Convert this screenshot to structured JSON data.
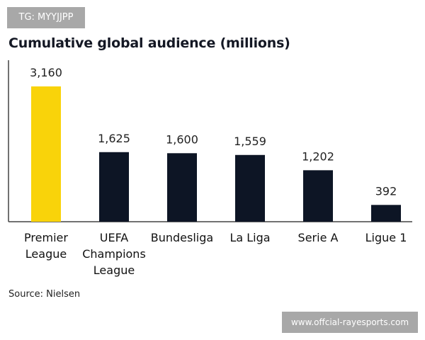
{
  "watermark_top": "TG: MYYJJPP",
  "watermark_bottom": "www.offcial-rayesports.com",
  "source": "Source: Nielsen",
  "chart_data": {
    "type": "bar",
    "title": "Cumulative global audience (millions)",
    "categories": [
      [
        "Premier",
        "League"
      ],
      [
        "UEFA",
        "Champions",
        "League"
      ],
      [
        "Bundesliga"
      ],
      [
        "La Liga"
      ],
      [
        "Serie A"
      ],
      [
        "Ligue 1"
      ]
    ],
    "values": [
      3160,
      1625,
      1600,
      1559,
      1202,
      392
    ],
    "value_labels": [
      "3,160",
      "1,625",
      "1,600",
      "1,559",
      "1,202",
      "392"
    ],
    "colors": [
      "#f9d30a",
      "#0d1525",
      "#0d1525",
      "#0d1525",
      "#0d1525",
      "#0d1525"
    ],
    "xlabel": "",
    "ylabel": "",
    "ylim": [
      0,
      3160
    ],
    "grid": false
  }
}
